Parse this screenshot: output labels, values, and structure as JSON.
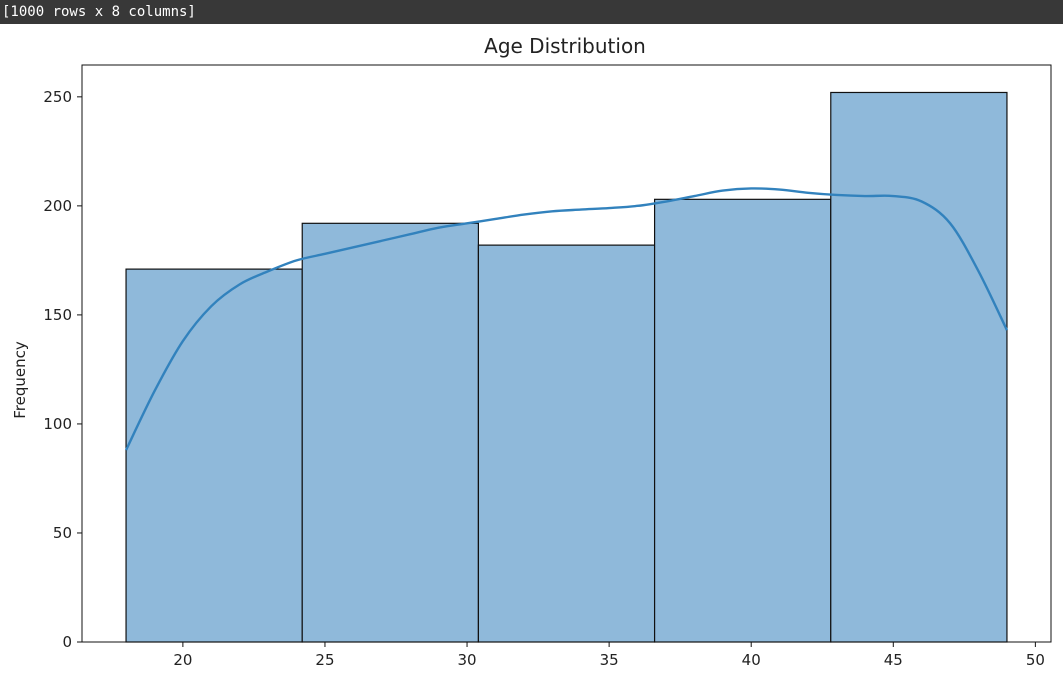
{
  "console": {
    "text": "[1000 rows x 8 columns]"
  },
  "colors": {
    "bar_fill": "#8fb9da",
    "bar_edge": "#111111",
    "kde_line": "#3282bd"
  },
  "chart_data": {
    "type": "bar",
    "subtype": "histogram",
    "title": "Age Distribution",
    "xlabel": "",
    "ylabel": "Frequency",
    "bins": [
      {
        "start": 18.0,
        "end": 24.2,
        "count": 171
      },
      {
        "start": 24.2,
        "end": 30.4,
        "count": 192
      },
      {
        "start": 30.4,
        "end": 36.6,
        "count": 182
      },
      {
        "start": 36.6,
        "end": 42.8,
        "count": 203
      },
      {
        "start": 42.8,
        "end": 49.0,
        "count": 252
      }
    ],
    "kde": {
      "x": [
        18,
        19,
        20,
        21,
        22,
        23,
        24,
        25,
        26,
        27,
        28,
        29,
        30,
        31,
        32,
        33,
        34,
        35,
        36,
        37,
        38,
        39,
        40,
        41,
        42,
        43,
        44,
        45,
        46,
        47,
        48,
        49
      ],
      "y": [
        88,
        115,
        138,
        154,
        164,
        170,
        175,
        178,
        181,
        184,
        187,
        190,
        192,
        194,
        196,
        197.5,
        198.3,
        199,
        200,
        202,
        204.5,
        207,
        208,
        207.5,
        206,
        205,
        204.5,
        204.5,
        202,
        192,
        170,
        143
      ]
    },
    "xticks": [
      20,
      25,
      30,
      35,
      40,
      45,
      50
    ],
    "yticks": [
      0,
      50,
      100,
      150,
      200,
      250
    ],
    "xlim": [
      16.45,
      50.55
    ],
    "ylim": [
      0,
      264.6
    ],
    "grid": false
  }
}
